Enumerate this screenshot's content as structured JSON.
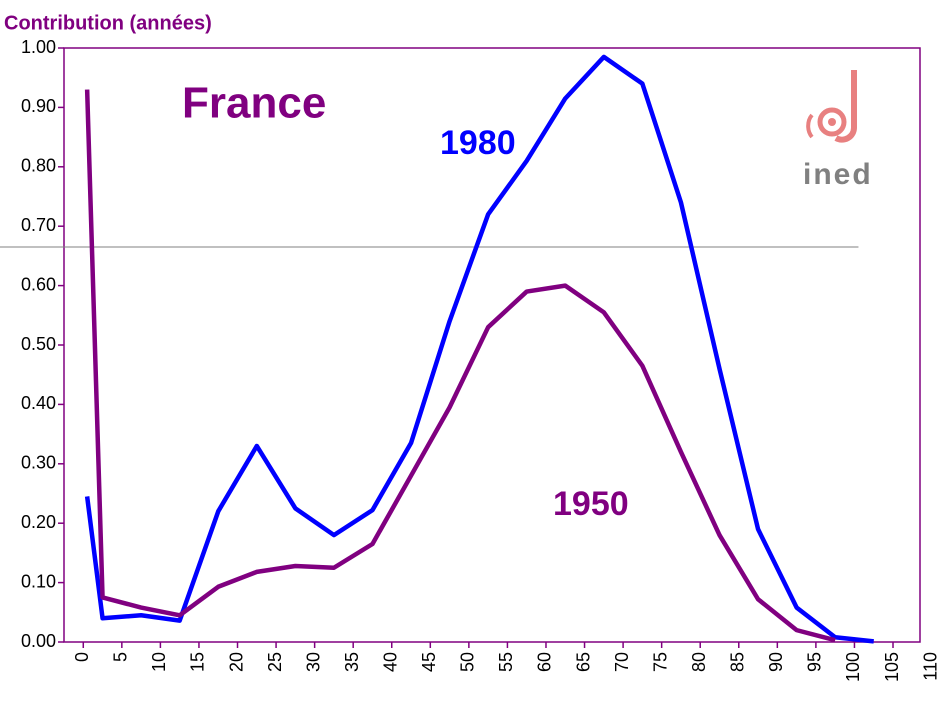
{
  "chart_data": {
    "type": "line",
    "y_axis_title": "Contribution (années)",
    "annotation": "France",
    "logo_text": "ined",
    "xlim": [
      -2.5,
      108.5
    ],
    "ylim": [
      0,
      1
    ],
    "xticks": [
      0,
      5,
      10,
      15,
      20,
      25,
      30,
      35,
      40,
      45,
      50,
      55,
      60,
      65,
      70,
      75,
      80,
      85,
      90,
      95,
      100,
      105,
      110
    ],
    "yticks": [
      {
        "value": 0,
        "label": "0.00"
      },
      {
        "value": 0.1,
        "label": "0.10"
      },
      {
        "value": 0.2,
        "label": "0.20"
      },
      {
        "value": 0.3,
        "label": "0.30"
      },
      {
        "value": 0.4,
        "label": "0.40"
      },
      {
        "value": 0.5,
        "label": "0.50"
      },
      {
        "value": 0.6,
        "label": "0.60"
      },
      {
        "value": 0.7,
        "label": "0.70"
      },
      {
        "value": 0.8,
        "label": "0.80"
      },
      {
        "value": 0.9,
        "label": "0.90"
      },
      {
        "value": 1,
        "label": "1.00"
      }
    ],
    "reference_line": 0.665,
    "series": [
      {
        "name": "1980",
        "color": "#0000ff",
        "x": [
          0.5,
          2.5,
          7.5,
          12.5,
          17.5,
          22.5,
          27.5,
          32.5,
          37.5,
          42.5,
          47.5,
          52.5,
          57.5,
          62.5,
          67.5,
          72.5,
          77.5,
          82.5,
          87.5,
          92.5,
          97.5,
          102.5
        ],
        "values": [
          0.245,
          0.04,
          0.045,
          0.036,
          0.22,
          0.33,
          0.225,
          0.18,
          0.222,
          0.335,
          0.54,
          0.72,
          0.81,
          0.915,
          0.985,
          0.94,
          0.74,
          0.46,
          0.19,
          0.058,
          0.008,
          0.001
        ]
      },
      {
        "name": "1950",
        "color": "#800080",
        "x": [
          0.5,
          2.5,
          7.5,
          12.5,
          17.5,
          22.5,
          27.5,
          32.5,
          37.5,
          42.5,
          47.5,
          52.5,
          57.5,
          62.5,
          67.5,
          72.5,
          77.5,
          82.5,
          87.5,
          92.5,
          97.5
        ],
        "values": [
          0.93,
          0.075,
          0.058,
          0.045,
          0.093,
          0.118,
          0.128,
          0.125,
          0.165,
          0.28,
          0.395,
          0.53,
          0.59,
          0.6,
          0.555,
          0.465,
          0.32,
          0.18,
          0.072,
          0.02,
          0.003
        ]
      }
    ]
  }
}
